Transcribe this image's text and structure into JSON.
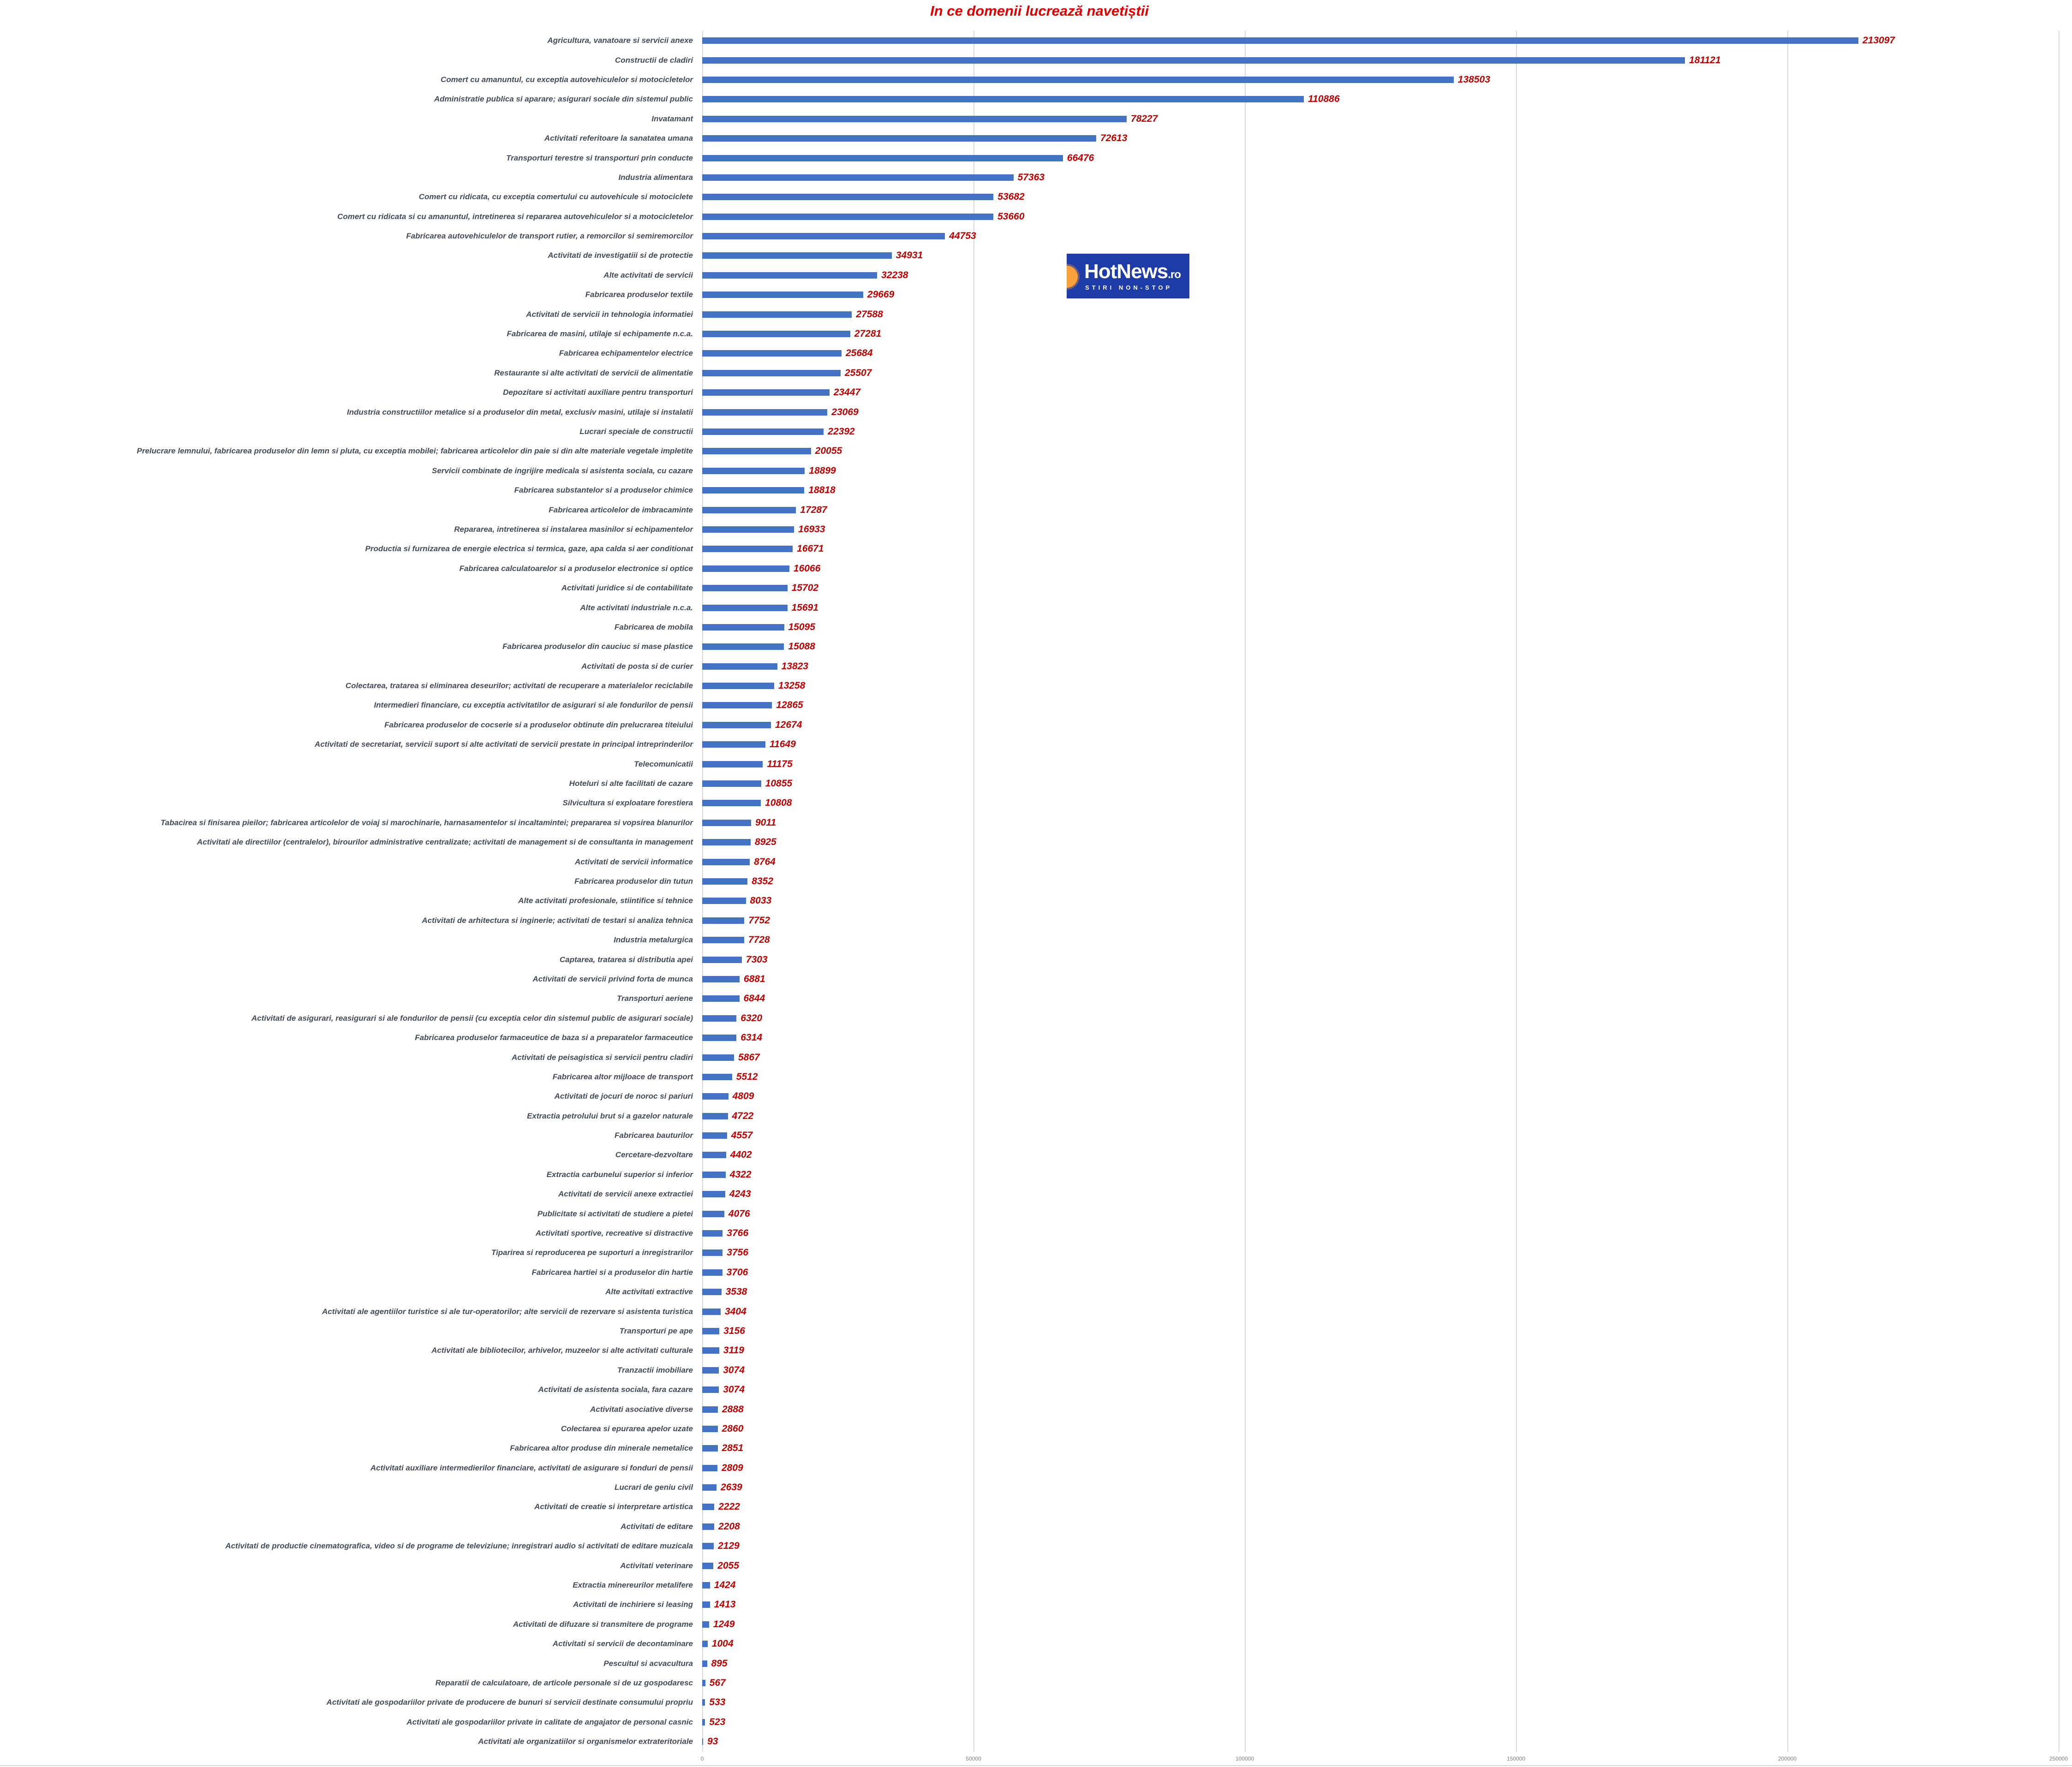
{
  "title": "In ce domenii lucrează navetiștii",
  "colors": {
    "bar": "#4472c4",
    "value_label": "#c00000",
    "title": "#e00000",
    "category_label": "#454c59",
    "gridline": "#d9d9d9",
    "axis_tick": "#808080",
    "logo_bg": "#1e3ca8",
    "logo_orange": "#f9a13a"
  },
  "logo": {
    "brand": "HotNews",
    "tld": ".ro",
    "tagline": "STIRI NON-STOP"
  },
  "axis": {
    "ticks": [
      "0",
      "50000",
      "100000",
      "150000",
      "200000",
      "250000"
    ],
    "tick_values": [
      0,
      50000,
      100000,
      150000,
      200000,
      250000
    ]
  },
  "chart_data": {
    "type": "bar",
    "orientation": "horizontal",
    "title": "In ce domenii lucrează navetiștii",
    "xlabel": "",
    "ylabel": "",
    "xlim": [
      0,
      250000
    ],
    "grid": true,
    "legend": false,
    "categories": [
      "Agricultura, vanatoare si servicii anexe",
      "Constructii de cladiri",
      "Comert cu amanuntul, cu exceptia autovehiculelor si motocicletelor",
      "Administratie publica si aparare; asigurari sociale din sistemul public",
      "Invatamant",
      "Activitati referitoare la sanatatea umana",
      "Transporturi terestre si transporturi prin conducte",
      "Industria alimentara",
      "Comert cu ridicata, cu exceptia comertului cu autovehicule si motociclete",
      "Comert cu ridicata si cu amanuntul, intretinerea si repararea autovehiculelor si a motocicletelor",
      "Fabricarea autovehiculelor de transport rutier, a remorcilor si semiremorcilor",
      "Activitati de investigatiii si de protectie",
      "Alte activitati de servicii",
      "Fabricarea produselor textile",
      "Activitati de servicii in tehnologia informatiei",
      "Fabricarea de masini, utilaje si echipamente n.c.a.",
      "Fabricarea echipamentelor electrice",
      "Restaurante si alte activitati de servicii de alimentatie",
      "Depozitare si activitati auxiliare pentru transporturi",
      "Industria constructiilor metalice si a produselor din metal, exclusiv masini, utilaje si instalatii",
      "Lucrari speciale de constructii",
      "Prelucrare lemnului, fabricarea produselor din lemn si pluta, cu exceptia mobilei; fabricarea articolelor din paie si din alte materiale vegetale impletite",
      "Servicii combinate de ingrijire medicala si asistenta sociala, cu cazare",
      "Fabricarea substantelor si a produselor chimice",
      "Fabricarea articolelor de imbracaminte",
      "Repararea, intretinerea si instalarea masinilor si echipamentelor",
      "Productia si furnizarea de energie electrica si termica, gaze, apa calda si aer conditionat",
      "Fabricarea calculatoarelor si a produselor electronice si optice",
      "Activitati juridice si de contabilitate",
      "Alte activitati industriale n.c.a.",
      "Fabricarea de mobila",
      "Fabricarea produselor din cauciuc si mase plastice",
      "Activitati de posta si de curier",
      "Colectarea, tratarea si eliminarea deseurilor; activitati de recuperare a materialelor reciclabile",
      "Intermedieri financiare, cu exceptia activitatilor de asigurari si ale fondurilor de pensii",
      "Fabricarea produselor de cocserie si a produselor obtinute din prelucrarea titeiului",
      "Activitati de secretariat, servicii suport si alte activitati de servicii prestate in principal intreprinderilor",
      "Telecomunicatii",
      "Hoteluri si alte facilitati de cazare",
      "Silvicultura si exploatare forestiera",
      "Tabacirea si finisarea pieilor; fabricarea articolelor de voiaj si marochinarie, harnasamentelor si incaltamintei; prepararea si vopsirea blanurilor",
      "Activitati ale directiilor (centralelor), birourilor administrative centralizate; activitati de management si de consultanta in management",
      "Activitati de servicii informatice",
      "Fabricarea produselor din tutun",
      "Alte activitati profesionale, stiintifice si tehnice",
      "Activitati de arhitectura si inginerie; activitati de testari si analiza tehnica",
      "Industria metalurgica",
      "Captarea, tratarea si distributia apei",
      "Activitati de servicii privind forta de munca",
      "Transporturi aeriene",
      "Activitati de asigurari, reasigurari si ale fondurilor de pensii (cu exceptia celor din sistemul public de asigurari sociale)",
      "Fabricarea produselor farmaceutice de baza si a preparatelor farmaceutice",
      "Activitati de peisagistica si servicii pentru cladiri",
      "Fabricarea altor mijloace de transport",
      "Activitati de jocuri de noroc si pariuri",
      "Extractia petrolului brut si a gazelor naturale",
      "Fabricarea bauturilor",
      "Cercetare-dezvoltare",
      "Extractia carbunelui superior si inferior",
      "Activitati de servicii anexe extractiei",
      "Publicitate si activitati de studiere a pietei",
      "Activitati sportive, recreative si distractive",
      "Tiparirea si reproducerea pe suporturi a inregistrarilor",
      "Fabricarea hartiei si a produselor din hartie",
      "Alte activitati extractive",
      "Activitati ale agentiilor turistice si ale tur-operatorilor; alte servicii de rezervare si asistenta turistica",
      "Transporturi pe ape",
      "Activitati ale bibliotecilor, arhivelor, muzeelor si alte activitati culturale",
      "Tranzactii imobiliare",
      "Activitati de asistenta sociala, fara cazare",
      "Activitati asociative diverse",
      "Colectarea si epurarea apelor uzate",
      "Fabricarea altor produse din minerale nemetalice",
      "Activitati auxiliare intermedierilor financiare, activitati de asigurare si fonduri de pensii",
      "Lucrari de geniu civil",
      "Activitati de creatie si interpretare artistica",
      "Activitati de editare",
      "Activitati de productie cinematografica, video si de programe de televiziune; inregistrari audio si activitati de editare muzicala",
      "Activitati veterinare",
      "Extractia minereurilor metalifere",
      "Activitati de inchiriere si leasing",
      "Activitati de difuzare si transmitere de programe",
      "Activitati si servicii de decontaminare",
      "Pescuitul si acvacultura",
      "Reparatii de calculatoare, de articole personale si de uz gospodaresc",
      "Activitati ale gospodariilor private de producere de bunuri si servicii destinate consumului propriu",
      "Activitati ale gospodariilor private in calitate de angajator de personal casnic",
      "Activitati ale organizatiilor si organismelor extrateritoriale"
    ],
    "values": [
      213097,
      181121,
      138503,
      110886,
      78227,
      72613,
      66476,
      57363,
      53682,
      53660,
      44753,
      34931,
      32238,
      29669,
      27588,
      27281,
      25684,
      25507,
      23447,
      23069,
      22392,
      20055,
      18899,
      18818,
      17287,
      16933,
      16671,
      16066,
      15702,
      15691,
      15095,
      15088,
      13823,
      13258,
      12865,
      12674,
      11649,
      11175,
      10855,
      10808,
      9011,
      8925,
      8764,
      8352,
      8033,
      7752,
      7728,
      7303,
      6881,
      6844,
      6320,
      6314,
      5867,
      5512,
      4809,
      4722,
      4557,
      4402,
      4322,
      4243,
      4076,
      3766,
      3756,
      3706,
      3538,
      3404,
      3156,
      3119,
      3074,
      3074,
      2888,
      2860,
      2851,
      2809,
      2639,
      2222,
      2208,
      2129,
      2055,
      1424,
      1413,
      1249,
      1004,
      895,
      567,
      533,
      523,
      93
    ]
  }
}
